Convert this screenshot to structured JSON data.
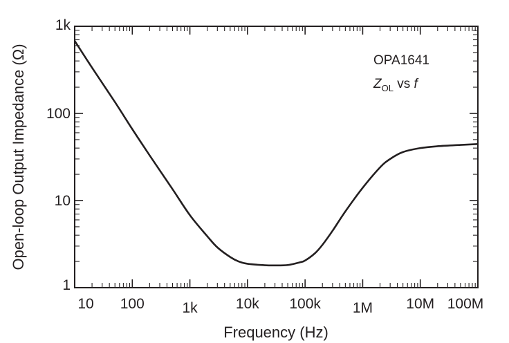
{
  "chart_data": {
    "type": "line",
    "title": "",
    "xlabel": "Frequency (Hz)",
    "ylabel": "Open-loop Output Impedance (Ω)",
    "x_scale": "log",
    "y_scale": "log",
    "xlim": [
      10,
      100000000
    ],
    "ylim": [
      1,
      1000
    ],
    "x_ticks": [
      {
        "value": 10,
        "label": "10"
      },
      {
        "value": 100,
        "label": "100"
      },
      {
        "value": 1000,
        "label": "1k"
      },
      {
        "value": 10000,
        "label": "10k"
      },
      {
        "value": 100000,
        "label": "100k"
      },
      {
        "value": 1000000,
        "label": "1M"
      },
      {
        "value": 10000000,
        "label": "10M"
      },
      {
        "value": 100000000,
        "label": "100M"
      }
    ],
    "y_ticks": [
      {
        "value": 1,
        "label": "1"
      },
      {
        "value": 10,
        "label": "10"
      },
      {
        "value": 100,
        "label": "100"
      },
      {
        "value": 1000,
        "label": "1k"
      }
    ],
    "grid": false,
    "annotation": {
      "line1": "OPA1641",
      "z": "Z",
      "sub": "OL",
      "vs": " vs ",
      "f": "f"
    },
    "series": [
      {
        "color": "#231f20",
        "points": [
          [
            10,
            680
          ],
          [
            20,
            335
          ],
          [
            50,
            135
          ],
          [
            100,
            66
          ],
          [
            200,
            33
          ],
          [
            500,
            13.5
          ],
          [
            1000,
            6.8
          ],
          [
            2000,
            3.9
          ],
          [
            3000,
            2.9
          ],
          [
            5000,
            2.25
          ],
          [
            7000,
            2.0
          ],
          [
            10000,
            1.88
          ],
          [
            20000,
            1.81
          ],
          [
            30000,
            1.8
          ],
          [
            50000,
            1.82
          ],
          [
            80000,
            1.95
          ],
          [
            100000,
            2.05
          ],
          [
            150000,
            2.5
          ],
          [
            200000,
            3.1
          ],
          [
            300000,
            4.5
          ],
          [
            500000,
            7.5
          ],
          [
            1000000,
            14
          ],
          [
            2000000,
            24
          ],
          [
            3000000,
            30
          ],
          [
            5000000,
            36
          ],
          [
            10000000,
            40
          ],
          [
            20000000,
            42
          ],
          [
            50000000,
            43.5
          ],
          [
            100000000,
            44.5
          ]
        ]
      }
    ]
  }
}
